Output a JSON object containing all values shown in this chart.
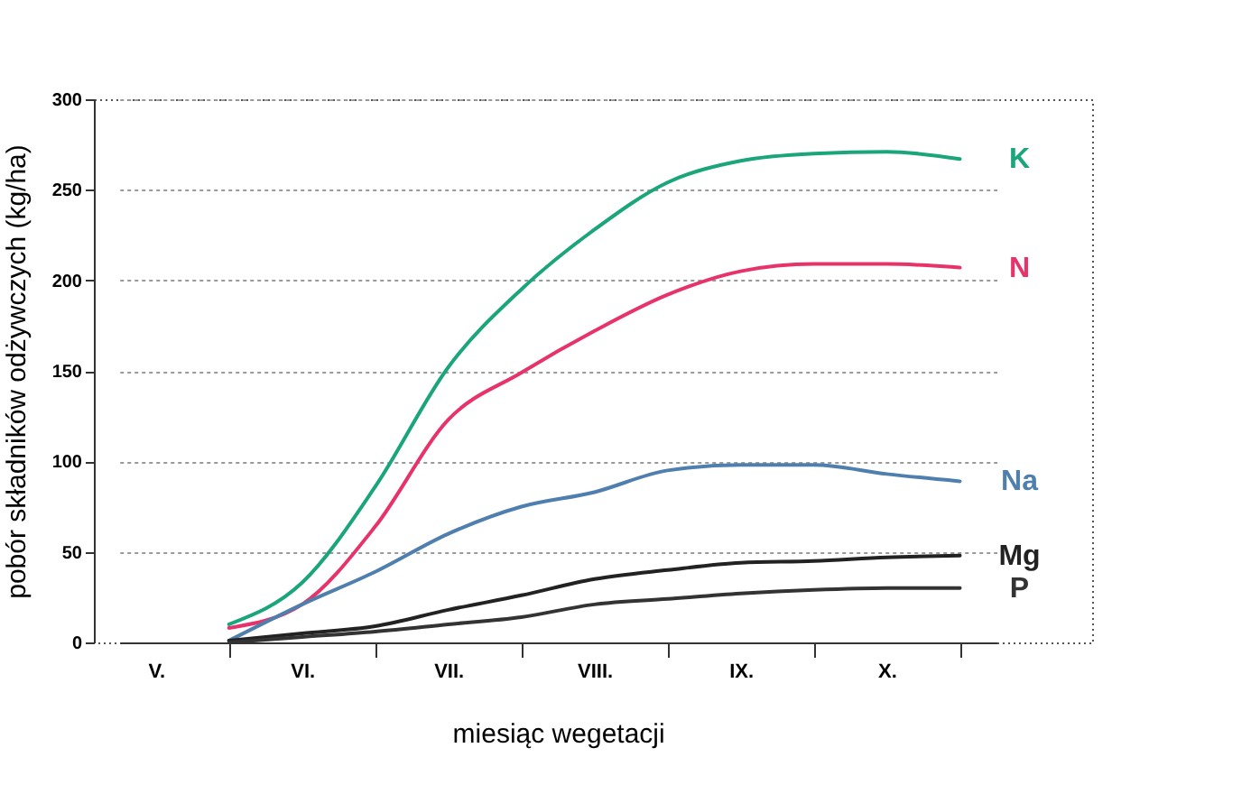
{
  "chart_data": {
    "type": "line",
    "xlabel": "miesiąc wegetacji",
    "ylabel": "pobór składników odżywczych (kg/ha)",
    "categories": [
      "V.",
      null,
      "VI.",
      null,
      "VII.",
      null,
      "VIII.",
      null,
      "IX.",
      null,
      "X.",
      null
    ],
    "ylim": [
      0,
      300
    ],
    "yticks": [
      0,
      50,
      100,
      150,
      200,
      250,
      300
    ],
    "grid": "y",
    "legend": false,
    "marker": "none",
    "line_style": "solid",
    "series": [
      {
        "name": "K",
        "color": "#1aa57a",
        "values": [
          null,
          10,
          33,
          86,
          152,
          195,
          228,
          254,
          266,
          270,
          271,
          267
        ]
      },
      {
        "name": "N",
        "color": "#e8336a",
        "values": [
          null,
          8,
          21,
          64,
          123,
          149,
          172,
          192,
          205,
          209,
          209,
          207
        ]
      },
      {
        "name": "Na",
        "color": "#4f7fae",
        "values": [
          null,
          1,
          21,
          39,
          60,
          75,
          83,
          95,
          98,
          98,
          93,
          89
        ]
      },
      {
        "name": "Mg",
        "color": "#222222",
        "values": [
          null,
          1,
          5,
          9,
          18,
          26,
          35,
          40,
          44,
          45,
          47,
          48
        ]
      },
      {
        "name": "P",
        "color": "#333333",
        "values": [
          null,
          0,
          3,
          6,
          10,
          14,
          21,
          24,
          27,
          29,
          30,
          30
        ]
      }
    ]
  }
}
